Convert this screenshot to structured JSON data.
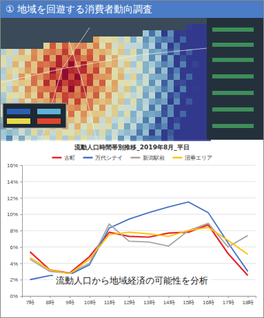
{
  "header": {
    "title": "① 地域を回遊する消費者動向調査"
  },
  "caption": "流動人口から地域経済の可能性を分析",
  "chart_data": {
    "type": "line",
    "title": "流動人口時間帯別推移_2019年8月_平日",
    "categories": [
      "7時",
      "8時",
      "9時",
      "10時",
      "11時",
      "12時",
      "13時",
      "14時",
      "15時",
      "16時",
      "17時",
      "18時"
    ],
    "series": [
      {
        "name": "古町",
        "color": "#e8262a",
        "values": [
          5.4,
          3.2,
          2.8,
          4.8,
          7.8,
          7.3,
          7.2,
          7.7,
          7.8,
          8.7,
          5.2,
          2.5
        ]
      },
      {
        "name": "万代シテイ",
        "color": "#4472c4",
        "values": [
          2.0,
          2.5,
          2.6,
          3.8,
          8.3,
          9.4,
          10.2,
          10.9,
          11.5,
          10.2,
          6.5,
          3.0
        ]
      },
      {
        "name": "新潟駅前",
        "color": "#a5a5a5",
        "values": [
          4.5,
          3.0,
          2.8,
          4.0,
          8.8,
          6.7,
          6.6,
          6.1,
          8.0,
          8.9,
          6.0,
          7.4
        ]
      },
      {
        "name": "沼垂エリア",
        "color": "#ffc000",
        "values": [
          4.7,
          3.2,
          2.7,
          4.5,
          7.5,
          7.8,
          7.6,
          7.3,
          8.0,
          8.4,
          6.8,
          5.1
        ]
      }
    ],
    "ylim": [
      0,
      16
    ],
    "yticks": [
      {
        "value": 0,
        "label": "0%"
      },
      {
        "value": 2,
        "label": "2%"
      },
      {
        "value": 4,
        "label": "4%"
      },
      {
        "value": 6,
        "label": "6%"
      },
      {
        "value": 8,
        "label": "8%"
      },
      {
        "value": 10,
        "label": "10%"
      },
      {
        "value": 12,
        "label": "12%"
      },
      {
        "value": 14,
        "label": "14%"
      },
      {
        "value": 16,
        "label": "16%"
      }
    ],
    "grid": true,
    "legend": "top"
  }
}
